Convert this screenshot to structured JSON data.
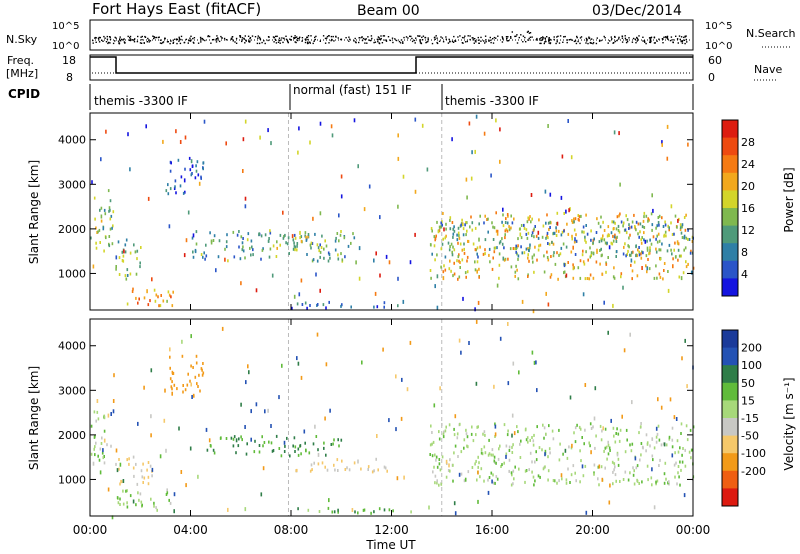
{
  "header": {
    "station": "Fort Hays East (fitACF)",
    "beam": "Beam 00",
    "date": "03/Dec/2014"
  },
  "panels": {
    "nsky": {
      "label": "N.Sky",
      "ticks": [
        "10^5",
        "10^0"
      ]
    },
    "nsearch": {
      "label": "N.Search",
      "ticks": [
        "10^5",
        "10^0"
      ]
    },
    "freq": {
      "label_top": "Freq.",
      "label_bottom": "[MHz]",
      "ticks": [
        "18",
        "8"
      ]
    },
    "nave": {
      "label": "Nave",
      "ticks": [
        "60",
        "0"
      ]
    },
    "cpid": {
      "label": "CPID",
      "segments": [
        {
          "name": "themis -3300 IF",
          "start_hour": 0,
          "end_hour": 7.9
        },
        {
          "name": "normal (fast) 151 IF",
          "start_hour": 7.9,
          "end_hour": 14.0
        },
        {
          "name": "themis -3300 IF",
          "start_hour": 14.0,
          "end_hour": 24
        }
      ]
    }
  },
  "chart_data": [
    {
      "type": "heatmap",
      "title": "",
      "xlabel": "",
      "ylabel": "Slant Range [km]",
      "xlim": [
        0,
        24
      ],
      "ylim": [
        180,
        4600
      ],
      "yticks": [
        "1000",
        "2000",
        "3000",
        "4000"
      ],
      "colorbar_label": "Power [dB]",
      "colorbar_ticks": [
        "4",
        "8",
        "12",
        "16",
        "20",
        "24",
        "28"
      ],
      "colorbar_colors": [
        "#1414e0",
        "#2a55c8",
        "#2f7fa6",
        "#4f9a7a",
        "#7fb84f",
        "#d3d52a",
        "#f2a81c",
        "#f57a12",
        "#ee4a10",
        "#dd1c10"
      ],
      "scatter_regions": [
        {
          "t0": 0.0,
          "t1": 0.9,
          "r0": 1400,
          "r1": 2900,
          "value": 14
        },
        {
          "t0": 1.0,
          "t1": 2.2,
          "r0": 900,
          "r1": 1800,
          "value": 12
        },
        {
          "t0": 1.0,
          "t1": 3.3,
          "r0": 300,
          "r1": 700,
          "value": 20
        },
        {
          "t0": 3.0,
          "t1": 4.5,
          "r0": 2800,
          "r1": 3700,
          "value": 4
        },
        {
          "t0": 4.0,
          "t1": 10.5,
          "r0": 1300,
          "r1": 2000,
          "value": 10
        },
        {
          "t0": 6.8,
          "t1": 9.5,
          "r0": 1550,
          "r1": 1950,
          "value": 15
        },
        {
          "t0": 8.0,
          "t1": 13.0,
          "r0": 250,
          "r1": 400,
          "value": 6
        },
        {
          "t0": 13.5,
          "t1": 24.0,
          "r0": 900,
          "r1": 2400,
          "value": 18
        },
        {
          "t0": 13.5,
          "t1": 24.0,
          "r0": 1400,
          "r1": 2200,
          "value": 10
        }
      ]
    },
    {
      "type": "heatmap",
      "title": "",
      "xlabel": "Time UT",
      "ylabel": "Slant Range [km]",
      "xlim": [
        0,
        24
      ],
      "ylim": [
        180,
        4600
      ],
      "xticks": [
        "00:00",
        "04:00",
        "08:00",
        "12:00",
        "16:00",
        "20:00",
        "00:00"
      ],
      "yticks": [
        "1000",
        "2000",
        "3000",
        "4000"
      ],
      "colorbar_label": "Velocity [m s⁻¹]",
      "colorbar_ticks": [
        "200",
        "100",
        "50",
        "15",
        "-15",
        "-50",
        "-100",
        "-200"
      ],
      "colorbar_colors": [
        "#1a3a9a",
        "#2452b4",
        "#2f7d48",
        "#60bb3a",
        "#a7d87a",
        "#c8c8c4",
        "#f5c86a",
        "#f29a18",
        "#ef5f12",
        "#dd1a10"
      ],
      "scatter_regions": [
        {
          "t0": 0.0,
          "t1": 0.9,
          "r0": 1400,
          "r1": 2600,
          "value": 0
        },
        {
          "t0": 1.0,
          "t1": 3.3,
          "r0": 300,
          "r1": 800,
          "value": 0
        },
        {
          "t0": 1.0,
          "t1": 2.5,
          "r0": 900,
          "r1": 1600,
          "value": -60
        },
        {
          "t0": 3.0,
          "t1": 4.5,
          "r0": 2900,
          "r1": 3800,
          "value": -150
        },
        {
          "t0": 4.5,
          "t1": 10.0,
          "r0": 1550,
          "r1": 2000,
          "value": 50
        },
        {
          "t0": 8.0,
          "t1": 12.0,
          "r0": 1200,
          "r1": 1500,
          "value": -60
        },
        {
          "t0": 8.0,
          "t1": 13.0,
          "r0": 250,
          "r1": 400,
          "value": 40
        },
        {
          "t0": 13.5,
          "t1": 24.0,
          "r0": 900,
          "r1": 2300,
          "value": 0
        }
      ]
    }
  ]
}
